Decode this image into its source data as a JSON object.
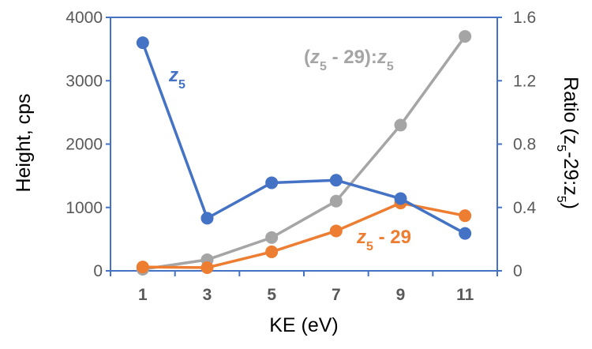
{
  "chart_data": {
    "type": "line",
    "x": [
      1,
      3,
      5,
      7,
      9,
      11
    ],
    "xlabel": "KE (eV)",
    "xticks": [
      "1",
      "3",
      "5",
      "7",
      "9",
      "11"
    ],
    "ylabel": "Height, cps",
    "ylim": [
      0,
      4000
    ],
    "yticks": [
      "0",
      "1000",
      "2000",
      "3000",
      "4000"
    ],
    "y2label": "Ratio (z5-29:z5)",
    "y2label_parts": {
      "pre": "Ratio (z",
      "sub1": "5",
      "mid": "-29:z",
      "sub2": "5",
      "post": ")"
    },
    "y2lim": [
      0,
      1.6
    ],
    "y2ticks": [
      "0",
      "0.4",
      "0.8",
      "1.2",
      "1.6"
    ],
    "grid": false,
    "series": [
      {
        "name": "z5",
        "label_parts": {
          "italic": "z",
          "sub": "5"
        },
        "axis": "left",
        "color": "#4472C4",
        "values": [
          3600,
          830,
          1390,
          1430,
          1140,
          590
        ]
      },
      {
        "name": "z5 - 29",
        "label_parts": {
          "italic": "z",
          "sub": "5",
          "rest": " - 29"
        },
        "axis": "left",
        "color": "#ED7D31",
        "values": [
          60,
          50,
          300,
          630,
          1070,
          870
        ]
      },
      {
        "name": "(z5 - 29):z5",
        "label_parts": {
          "pre": "(",
          "italic1": "z",
          "sub1": "5",
          "mid": " - 29):",
          "italic2": "z",
          "sub2": "5"
        },
        "axis": "right",
        "color": "#A5A5A5",
        "values": [
          0.01,
          0.07,
          0.21,
          0.44,
          0.92,
          1.48
        ]
      }
    ]
  }
}
